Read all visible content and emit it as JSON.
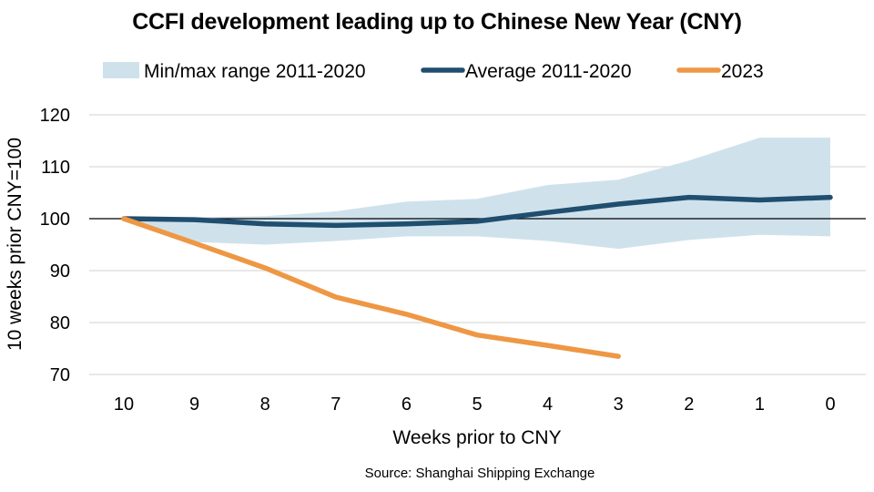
{
  "chart_data": {
    "type": "line",
    "title": "CCFI development leading up to Chinese New Year (CNY)",
    "xlabel": "Weeks prior to CNY",
    "ylabel": "10 weeks prior CNY=100",
    "categories": [
      "10",
      "9",
      "8",
      "7",
      "6",
      "5",
      "4",
      "3",
      "2",
      "1",
      "0"
    ],
    "ylim": [
      70,
      120
    ],
    "yticks": [
      70,
      80,
      90,
      100,
      110,
      120
    ],
    "reference_line": 100,
    "grid": true,
    "legend_position": "top",
    "source": "Source: Shanghai Shipping Exchange",
    "band": {
      "name": "Min/max range 2011-2020",
      "color": "#cfe2ec",
      "min": [
        100,
        95.5,
        95,
        95.7,
        96.6,
        96.6,
        95.7,
        94.2,
        95.9,
        96.9,
        96.6
      ],
      "max": [
        100,
        100.3,
        100.5,
        101.4,
        103.3,
        103.8,
        106.5,
        107.5,
        111.2,
        115.6,
        115.6
      ]
    },
    "series": [
      {
        "name": "Average 2011-2020",
        "color": "#1f4e6f",
        "values": [
          100,
          99.8,
          99,
          98.7,
          99,
          99.5,
          101.2,
          102.8,
          104.1,
          103.6,
          104.1
        ]
      },
      {
        "name": "2023",
        "color": "#ee9744",
        "values": [
          100,
          95.3,
          90.5,
          84.9,
          81.6,
          77.6,
          75.6,
          73.5,
          null,
          null,
          null
        ]
      }
    ]
  }
}
